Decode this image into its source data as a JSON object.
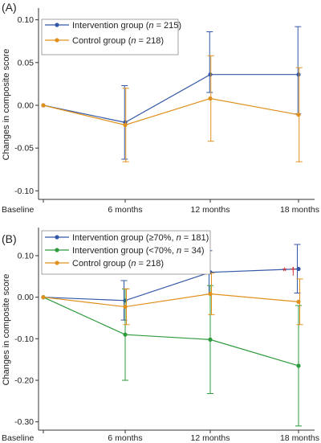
{
  "chart_data": [
    {
      "type": "line",
      "panel_label": "(A)",
      "ylabel": "Changes in composite score",
      "xlabel": "",
      "categories": [
        "Baseline",
        "6 months",
        "12 months",
        "18 months"
      ],
      "ylim": [
        -0.11,
        0.11
      ],
      "yticks": [
        0.1,
        0.05,
        0.0,
        -0.05,
        -0.1
      ],
      "ytick_labels": [
        "0.10",
        "0.05",
        "0.00",
        "-0.05",
        "-0.10"
      ],
      "grid": false,
      "legend_position": "top-left",
      "series": [
        {
          "name": "Intervention group (n = 215)",
          "legend_parts": [
            "Intervention group (",
            "n",
            " = 215)"
          ],
          "color": "#3358a8",
          "values": [
            0.0,
            -0.02,
            0.036,
            0.036
          ],
          "err_low": [
            0.0,
            -0.063,
            0.015,
            -0.01
          ],
          "err_high": [
            0.0,
            0.023,
            0.086,
            0.092
          ]
        },
        {
          "name": "Control group (n = 218)",
          "legend_parts": [
            "Control group (",
            "n",
            " = 218)"
          ],
          "color": "#e0901c",
          "values": [
            0.0,
            -0.023,
            0.008,
            -0.011
          ],
          "err_low": [
            0.0,
            -0.066,
            -0.042,
            -0.066
          ],
          "err_high": [
            0.0,
            0.02,
            0.058,
            0.044
          ]
        }
      ]
    },
    {
      "type": "line",
      "panel_label": "(B)",
      "ylabel": "Changes in composite score",
      "xlabel": "",
      "categories": [
        "Baseline",
        "6 months",
        "12 months",
        "18 months"
      ],
      "ylim": [
        -0.32,
        0.16
      ],
      "yticks": [
        0.1,
        0.0,
        -0.1,
        -0.2,
        -0.3
      ],
      "ytick_labels": [
        "0.10",
        "0.00",
        "-0.10",
        "-0.20",
        "-0.30"
      ],
      "grid": false,
      "legend_position": "top-left",
      "annotation": {
        "text": "* †",
        "near": "18 months"
      },
      "series": [
        {
          "name": "Intervention group (≥70%, n = 181)",
          "legend_parts": [
            "Intervention group (≥70%, ",
            "n",
            " = 181)"
          ],
          "color": "#3358a8",
          "values": [
            0.0,
            -0.008,
            0.06,
            0.068
          ],
          "err_low": [
            0.0,
            -0.055,
            0.007,
            0.01
          ],
          "err_high": [
            0.0,
            0.04,
            0.112,
            0.127
          ]
        },
        {
          "name": "Intervention group (<70%, n = 34)",
          "legend_parts": [
            "Intervention group (<70%, ",
            "n",
            " = 34)"
          ],
          "color": "#2d9a3c",
          "values": [
            0.0,
            -0.09,
            -0.102,
            -0.165
          ],
          "err_low": [
            0.0,
            -0.2,
            -0.232,
            -0.31
          ],
          "err_high": [
            0.0,
            0.02,
            0.028,
            -0.02
          ]
        },
        {
          "name": "Control group (n = 218)",
          "legend_parts": [
            "Control group (",
            "n",
            " = 218)"
          ],
          "color": "#e0901c",
          "values": [
            0.0,
            -0.023,
            0.008,
            -0.011
          ],
          "err_low": [
            0.0,
            -0.066,
            -0.042,
            -0.066
          ],
          "err_high": [
            0.0,
            0.02,
            0.058,
            0.044
          ]
        }
      ]
    }
  ]
}
